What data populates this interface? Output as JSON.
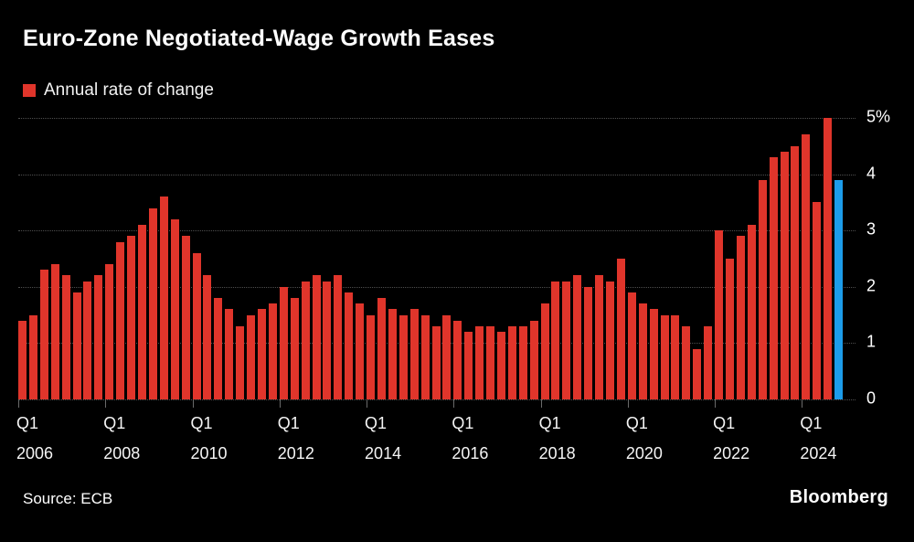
{
  "title": "Euro-Zone Negotiated-Wage Growth Eases",
  "legend": {
    "label": "Annual rate of change",
    "color": "#e0352b"
  },
  "source": "Source: ECB",
  "brand": "Bloomberg",
  "colors": {
    "background": "#000000",
    "text": "#ffffff",
    "grid": "#4f4f4f",
    "bar_red": "#e0352b",
    "bar_blue": "#1c9cea"
  },
  "chart_data": {
    "type": "bar",
    "title": "Euro-Zone Negotiated-Wage Growth Eases",
    "subtitle": "Annual rate of change",
    "xlabel": "",
    "ylabel": "Annual rate of change (%)",
    "unit": "%",
    "ylim": [
      0,
      5
    ],
    "grid": true,
    "legend_position": "top-left",
    "bar_color": "#e0352b",
    "highlight_color": "#1c9cea",
    "highlight_index": 75,
    "categories": [
      "Q1 2006",
      "Q2 2006",
      "Q3 2006",
      "Q4 2006",
      "Q1 2007",
      "Q2 2007",
      "Q3 2007",
      "Q4 2007",
      "Q1 2008",
      "Q2 2008",
      "Q3 2008",
      "Q4 2008",
      "Q1 2009",
      "Q2 2009",
      "Q3 2009",
      "Q4 2009",
      "Q1 2010",
      "Q2 2010",
      "Q3 2010",
      "Q4 2010",
      "Q1 2011",
      "Q2 2011",
      "Q3 2011",
      "Q4 2011",
      "Q1 2012",
      "Q2 2012",
      "Q3 2012",
      "Q4 2012",
      "Q1 2013",
      "Q2 2013",
      "Q3 2013",
      "Q4 2013",
      "Q1 2014",
      "Q2 2014",
      "Q3 2014",
      "Q4 2014",
      "Q1 2015",
      "Q2 2015",
      "Q3 2015",
      "Q4 2015",
      "Q1 2016",
      "Q2 2016",
      "Q3 2016",
      "Q4 2016",
      "Q1 2017",
      "Q2 2017",
      "Q3 2017",
      "Q4 2017",
      "Q1 2018",
      "Q2 2018",
      "Q3 2018",
      "Q4 2018",
      "Q1 2019",
      "Q2 2019",
      "Q3 2019",
      "Q4 2019",
      "Q1 2020",
      "Q2 2020",
      "Q3 2020",
      "Q4 2020",
      "Q1 2021",
      "Q2 2021",
      "Q3 2021",
      "Q4 2021",
      "Q1 2022",
      "Q2 2022",
      "Q3 2022",
      "Q4 2022",
      "Q1 2023",
      "Q2 2023",
      "Q3 2023",
      "Q4 2023",
      "Q1 2024",
      "Q2 2024",
      "Q3 2024",
      "Q4 2024"
    ],
    "values": [
      1.4,
      1.5,
      2.3,
      2.4,
      2.2,
      1.9,
      2.1,
      2.2,
      2.4,
      2.8,
      2.9,
      3.1,
      3.4,
      3.6,
      3.2,
      2.9,
      2.6,
      2.2,
      1.8,
      1.6,
      1.3,
      1.5,
      1.6,
      1.7,
      2.0,
      1.8,
      2.1,
      2.2,
      2.1,
      2.2,
      1.9,
      1.7,
      1.5,
      1.8,
      1.6,
      1.5,
      1.6,
      1.5,
      1.3,
      1.5,
      1.4,
      1.2,
      1.3,
      1.3,
      1.2,
      1.3,
      1.3,
      1.4,
      1.7,
      2.1,
      2.1,
      2.2,
      2.0,
      2.2,
      2.1,
      2.5,
      1.9,
      1.7,
      1.6,
      1.5,
      1.5,
      1.3,
      0.9,
      1.3,
      3.0,
      2.5,
      2.9,
      3.1,
      3.9,
      4.3,
      4.4,
      4.5,
      4.7,
      3.5,
      5.0,
      3.9
    ],
    "yticks": [
      {
        "value": 5,
        "label": "5%"
      },
      {
        "value": 4,
        "label": "4"
      },
      {
        "value": 3,
        "label": "3"
      },
      {
        "value": 2,
        "label": "2"
      },
      {
        "value": 1,
        "label": "1"
      },
      {
        "value": 0,
        "label": "0"
      }
    ],
    "xticks": [
      {
        "index": 0,
        "line1": "Q1",
        "line2": "2006"
      },
      {
        "index": 8,
        "line1": "Q1",
        "line2": "2008"
      },
      {
        "index": 16,
        "line1": "Q1",
        "line2": "2010"
      },
      {
        "index": 24,
        "line1": "Q1",
        "line2": "2012"
      },
      {
        "index": 32,
        "line1": "Q1",
        "line2": "2014"
      },
      {
        "index": 40,
        "line1": "Q1",
        "line2": "2016"
      },
      {
        "index": 48,
        "line1": "Q1",
        "line2": "2018"
      },
      {
        "index": 56,
        "line1": "Q1",
        "line2": "2020"
      },
      {
        "index": 64,
        "line1": "Q1",
        "line2": "2022"
      },
      {
        "index": 72,
        "line1": "Q1",
        "line2": "2024"
      }
    ]
  }
}
